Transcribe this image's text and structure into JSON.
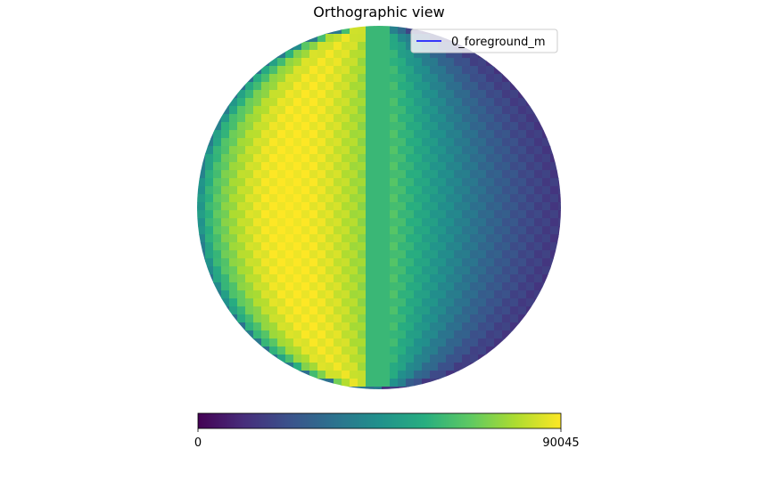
{
  "chart_data": {
    "type": "heatmap",
    "projection": "orthographic",
    "title": "Orthographic view",
    "legend": {
      "placement": "top-right",
      "entries": [
        {
          "label": "0_foreground_m",
          "color": "#0000ff"
        }
      ]
    },
    "colorbar": {
      "colormap": "viridis",
      "orientation": "horizontal",
      "min": 0,
      "max": 90045,
      "tick_labels": [
        "0",
        "90045"
      ]
    },
    "field": {
      "description_units": "value",
      "peak_value": 90045,
      "peak_longitude_deg": -20,
      "limb_value": 14000,
      "central_strip_value": 60000,
      "stripe_center_longitude_deg": -30
    },
    "grid": false
  }
}
